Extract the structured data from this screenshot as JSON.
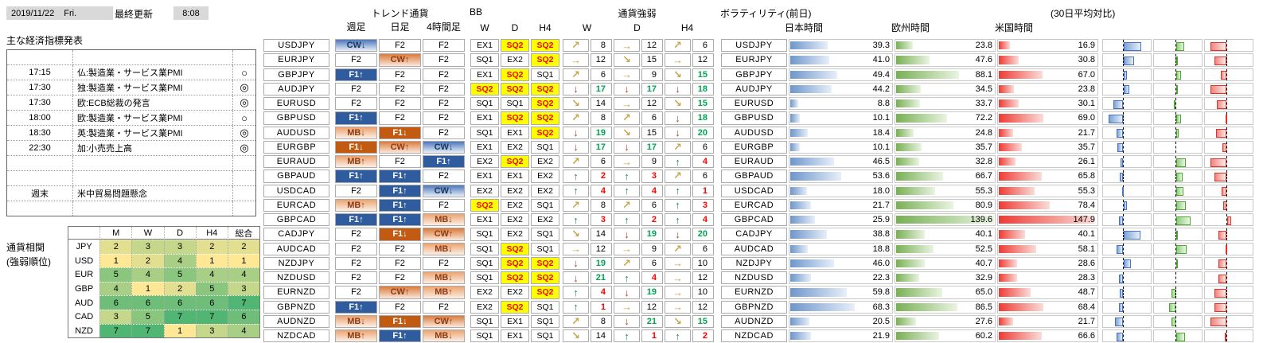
{
  "header": {
    "date": "2019/11/22",
    "weekday": "Fri.",
    "update_label": "最終更新",
    "update_time": "8:08"
  },
  "econ": {
    "title": "主な経済指標発表",
    "rows": [
      {
        "time": "",
        "event": "",
        "mark": ""
      },
      {
        "time": "17:15",
        "event": "仏:製造業・サービス業PMI",
        "mark": "○"
      },
      {
        "time": "17:30",
        "event": "独:製造業・サービス業PMI",
        "mark": "◎"
      },
      {
        "time": "17:30",
        "event": "欧:ECB総裁の発言",
        "mark": "◎"
      },
      {
        "time": "18:00",
        "event": "欧:製造業・サービス業PMI",
        "mark": "○"
      },
      {
        "time": "18:30",
        "event": "英:製造業・サービス業PMI",
        "mark": "◎"
      },
      {
        "time": "22:30",
        "event": "加:小売売上高",
        "mark": "◎"
      },
      {
        "time": "",
        "event": "",
        "mark": ""
      },
      {
        "time": "",
        "event": "",
        "mark": ""
      },
      {
        "time": "週末",
        "event": "米中貿易問題懸念",
        "mark": ""
      },
      {
        "time": "",
        "event": "",
        "mark": ""
      }
    ]
  },
  "correlation": {
    "label": [
      "通貨相関",
      "(強弱順位)"
    ],
    "columns": [
      "M",
      "W",
      "D",
      "H4",
      "総合"
    ],
    "rows": [
      {
        "currency": "JPY",
        "values": [
          2,
          3,
          3,
          2,
          2
        ]
      },
      {
        "currency": "USD",
        "values": [
          1,
          2,
          4,
          1,
          1
        ]
      },
      {
        "currency": "EUR",
        "values": [
          5,
          4,
          5,
          4,
          4
        ]
      },
      {
        "currency": "GBP",
        "values": [
          4,
          1,
          2,
          5,
          3
        ]
      },
      {
        "currency": "AUD",
        "values": [
          6,
          6,
          6,
          6,
          7
        ]
      },
      {
        "currency": "CAD",
        "values": [
          3,
          5,
          7,
          7,
          6
        ]
      },
      {
        "currency": "NZD",
        "values": [
          7,
          7,
          1,
          3,
          4
        ]
      }
    ],
    "scale_low_color": "#FFE895",
    "scale_high_color": "#51B574"
  },
  "pairs": [
    "USDJPY",
    "EURJPY",
    "GBPJPY",
    "AUDJPY",
    "EURUSD",
    "GBPUSD",
    "AUDUSD",
    "EURGBP",
    "EURAUD",
    "GBPAUD",
    "USDCAD",
    "EURCAD",
    "GBPCAD",
    "CADJPY",
    "AUDCAD",
    "NZDJPY",
    "NZDUSD",
    "EURNZD",
    "GBPNZD",
    "AUDNZD",
    "NZDCAD"
  ],
  "trend": {
    "title": "トレンド通貨",
    "columns": [
      "週足",
      "日足",
      "4時間足"
    ],
    "legend": {
      "f2": "F2",
      "f1_up": "F1↑",
      "f1_down": "F1↓",
      "cw_up": "CW↑",
      "cw_down": "CW↓",
      "mb_up": "MB↑",
      "mb_down": "MB↓"
    },
    "cells": [
      [
        "cw_down",
        "f2",
        "f2"
      ],
      [
        "f2",
        "cw_up",
        "f2"
      ],
      [
        "f1_up",
        "f2",
        "f2"
      ],
      [
        "f2",
        "f2",
        "f2"
      ],
      [
        "f2",
        "f2",
        "f2"
      ],
      [
        "f1_up",
        "f2",
        "f2"
      ],
      [
        "mb_down",
        "f1_down",
        "f2"
      ],
      [
        "f1_down",
        "cw_up",
        "cw_down"
      ],
      [
        "mb_up",
        "f2",
        "f1_up"
      ],
      [
        "f1_up",
        "f1_up",
        "f2"
      ],
      [
        "f2",
        "f1_up",
        "cw_down"
      ],
      [
        "mb_up",
        "f1_up",
        "f2"
      ],
      [
        "f1_up",
        "f1_up",
        "mb_down"
      ],
      [
        "f2",
        "f1_down",
        "cw_up"
      ],
      [
        "f2",
        "f2",
        "mb_down"
      ],
      [
        "f2",
        "f2",
        "f2"
      ],
      [
        "f2",
        "f2",
        "mb_down"
      ],
      [
        "f2",
        "cw_up",
        "mb_up"
      ],
      [
        "f1_up",
        "f2",
        "f2"
      ],
      [
        "mb_down",
        "f1_down",
        "cw_up"
      ],
      [
        "mb_up",
        "f1_up",
        "mb_down"
      ]
    ]
  },
  "bb": {
    "title": "BB",
    "columns": [
      "W",
      "D",
      "H4"
    ],
    "cells": [
      [
        "EX1",
        "SQ2",
        "SQ2"
      ],
      [
        "SQ1",
        "EX2",
        "SQ2"
      ],
      [
        "EX1",
        "SQ2",
        "SQ1"
      ],
      [
        "SQ2",
        "SQ2",
        "SQ2"
      ],
      [
        "SQ1",
        "SQ1",
        "SQ2"
      ],
      [
        "EX1",
        "SQ2",
        "SQ2"
      ],
      [
        "SQ1",
        "EX1",
        "SQ2"
      ],
      [
        "EX1",
        "EX2",
        "SQ1"
      ],
      [
        "EX2",
        "SQ2",
        "EX2"
      ],
      [
        "EX1",
        "EX1",
        "EX2"
      ],
      [
        "EX2",
        "EX2",
        "EX2"
      ],
      [
        "SQ2",
        "EX2",
        "SQ1"
      ],
      [
        "EX1",
        "EX2",
        "EX2"
      ],
      [
        "SQ1",
        "EX2",
        "SQ1"
      ],
      [
        "SQ1",
        "SQ2",
        "SQ1"
      ],
      [
        "SQ1",
        "SQ2",
        "SQ2"
      ],
      [
        "SQ1",
        "SQ2",
        "SQ2"
      ],
      [
        "EX2",
        "EX2",
        "SQ2"
      ],
      [
        "EX2",
        "SQ2",
        "SQ1"
      ],
      [
        "SQ1",
        "EX1",
        "SQ1"
      ],
      [
        "SQ1",
        "EX1",
        "SQ1"
      ]
    ],
    "highlight_value": "SQ2"
  },
  "strength": {
    "title": "通貨強弱",
    "columns": [
      "W",
      "D",
      "H4"
    ],
    "cells": [
      [
        {
          "dir": "ur",
          "value": 8,
          "color": "black"
        },
        {
          "dir": "r",
          "value": 12,
          "color": "black"
        },
        {
          "dir": "ur",
          "value": 6,
          "color": "black"
        }
      ],
      [
        {
          "dir": "r",
          "value": 12,
          "color": "black"
        },
        {
          "dir": "dr",
          "value": 15,
          "color": "black"
        },
        {
          "dir": "r",
          "value": 12,
          "color": "black"
        }
      ],
      [
        {
          "dir": "ur",
          "value": 6,
          "color": "black"
        },
        {
          "dir": "r",
          "value": 9,
          "color": "black"
        },
        {
          "dir": "dr",
          "value": 15,
          "color": "green"
        }
      ],
      [
        {
          "dir": "d",
          "value": 17,
          "color": "green"
        },
        {
          "dir": "d",
          "value": 17,
          "color": "green"
        },
        {
          "dir": "d",
          "value": 18,
          "color": "green"
        }
      ],
      [
        {
          "dir": "dr",
          "value": 14,
          "color": "black"
        },
        {
          "dir": "r",
          "value": 12,
          "color": "black"
        },
        {
          "dir": "dr",
          "value": 15,
          "color": "green"
        }
      ],
      [
        {
          "dir": "ur",
          "value": 8,
          "color": "black"
        },
        {
          "dir": "ur",
          "value": 6,
          "color": "black"
        },
        {
          "dir": "d",
          "value": 18,
          "color": "green"
        }
      ],
      [
        {
          "dir": "d",
          "value": 19,
          "color": "green"
        },
        {
          "dir": "dr",
          "value": 15,
          "color": "black"
        },
        {
          "dir": "d",
          "value": 20,
          "color": "green"
        }
      ],
      [
        {
          "dir": "d",
          "value": 17,
          "color": "green"
        },
        {
          "dir": "d",
          "value": 17,
          "color": "green"
        },
        {
          "dir": "ur",
          "value": 6,
          "color": "black"
        }
      ],
      [
        {
          "dir": "ur",
          "value": 6,
          "color": "black"
        },
        {
          "dir": "r",
          "value": 9,
          "color": "black"
        },
        {
          "dir": "u",
          "value": 4,
          "color": "red"
        }
      ],
      [
        {
          "dir": "u",
          "value": 2,
          "color": "red"
        },
        {
          "dir": "u",
          "value": 3,
          "color": "red"
        },
        {
          "dir": "ur",
          "value": 6,
          "color": "black"
        }
      ],
      [
        {
          "dir": "u",
          "value": 4,
          "color": "red"
        },
        {
          "dir": "u",
          "value": 4,
          "color": "red"
        },
        {
          "dir": "u",
          "value": 1,
          "color": "red"
        }
      ],
      [
        {
          "dir": "ur",
          "value": 8,
          "color": "black"
        },
        {
          "dir": "ur",
          "value": 6,
          "color": "black"
        },
        {
          "dir": "u",
          "value": 3,
          "color": "red"
        }
      ],
      [
        {
          "dir": "u",
          "value": 3,
          "color": "red"
        },
        {
          "dir": "u",
          "value": 2,
          "color": "red"
        },
        {
          "dir": "u",
          "value": 4,
          "color": "red"
        }
      ],
      [
        {
          "dir": "dr",
          "value": 14,
          "color": "black"
        },
        {
          "dir": "d",
          "value": 19,
          "color": "green"
        },
        {
          "dir": "d",
          "value": 20,
          "color": "green"
        }
      ],
      [
        {
          "dir": "r",
          "value": 12,
          "color": "black"
        },
        {
          "dir": "r",
          "value": 9,
          "color": "black"
        },
        {
          "dir": "ur",
          "value": 6,
          "color": "black"
        }
      ],
      [
        {
          "dir": "d",
          "value": 19,
          "color": "green"
        },
        {
          "dir": "ur",
          "value": 6,
          "color": "black"
        },
        {
          "dir": "r",
          "value": 10,
          "color": "black"
        }
      ],
      [
        {
          "dir": "d",
          "value": 21,
          "color": "green"
        },
        {
          "dir": "u",
          "value": 4,
          "color": "red"
        },
        {
          "dir": "r",
          "value": 12,
          "color": "black"
        }
      ],
      [
        {
          "dir": "u",
          "value": 4,
          "color": "red"
        },
        {
          "dir": "d",
          "value": 19,
          "color": "green"
        },
        {
          "dir": "r",
          "value": 10,
          "color": "black"
        }
      ],
      [
        {
          "dir": "u",
          "value": 1,
          "color": "red"
        },
        {
          "dir": "r",
          "value": 12,
          "color": "black"
        },
        {
          "dir": "r",
          "value": 12,
          "color": "black"
        }
      ],
      [
        {
          "dir": "ur",
          "value": 8,
          "color": "black"
        },
        {
          "dir": "d",
          "value": 21,
          "color": "green"
        },
        {
          "dir": "dr",
          "value": 15,
          "color": "green"
        }
      ],
      [
        {
          "dir": "dr",
          "value": 14,
          "color": "black"
        },
        {
          "dir": "u",
          "value": 1,
          "color": "red"
        },
        {
          "dir": "u",
          "value": 2,
          "color": "red"
        }
      ]
    ]
  },
  "volatility": {
    "title": "ボラティリティ(前日)",
    "sessions": [
      "日本時間",
      "欧州時間",
      "米国時間"
    ],
    "values": [
      [
        39.3,
        23.8,
        16.9
      ],
      [
        41.0,
        47.6,
        30.8
      ],
      [
        49.4,
        88.1,
        67.0
      ],
      [
        44.2,
        34.5,
        23.8
      ],
      [
        8.8,
        33.7,
        30.1
      ],
      [
        10.1,
        72.2,
        69.0
      ],
      [
        18.4,
        24.8,
        21.7
      ],
      [
        10.1,
        35.7,
        35.7
      ],
      [
        46.5,
        32.8,
        26.1
      ],
      [
        53.6,
        66.7,
        65.8
      ],
      [
        18.0,
        55.3,
        55.3
      ],
      [
        21.7,
        80.9,
        78.4
      ],
      [
        25.9,
        139.6,
        147.9
      ],
      [
        38.8,
        40.1,
        40.1
      ],
      [
        18.8,
        52.5,
        58.1
      ],
      [
        46.0,
        40.7,
        28.6
      ],
      [
        22.3,
        32.9,
        28.3
      ],
      [
        59.8,
        65.0,
        48.7
      ],
      [
        68.3,
        86.5,
        68.4
      ],
      [
        20.5,
        27.6,
        21.7
      ],
      [
        21.9,
        60.2,
        66.6
      ]
    ]
  },
  "avg30": {
    "title": "(30日平均対比)",
    "deviations": [
      [
        22,
        10,
        -20
      ],
      [
        13,
        2,
        -15
      ],
      [
        4,
        6,
        -7
      ],
      [
        7,
        1,
        -20
      ],
      [
        -12,
        -2,
        -12
      ],
      [
        -18,
        6,
        -1
      ],
      [
        -8,
        3,
        -13
      ],
      [
        -7,
        0,
        -5
      ],
      [
        -3,
        12,
        -20
      ],
      [
        -4,
        8,
        -15
      ],
      [
        -1,
        9,
        -6
      ],
      [
        4,
        12,
        -4
      ],
      [
        -5,
        18,
        5
      ],
      [
        21,
        2,
        -10
      ],
      [
        -8,
        13,
        -1
      ],
      [
        9,
        1,
        -10
      ],
      [
        -5,
        0,
        -10
      ],
      [
        -4,
        -5,
        -15
      ],
      [
        -5,
        -8,
        -15
      ],
      [
        -10,
        -5,
        -20
      ],
      [
        -8,
        11,
        -2
      ]
    ]
  }
}
